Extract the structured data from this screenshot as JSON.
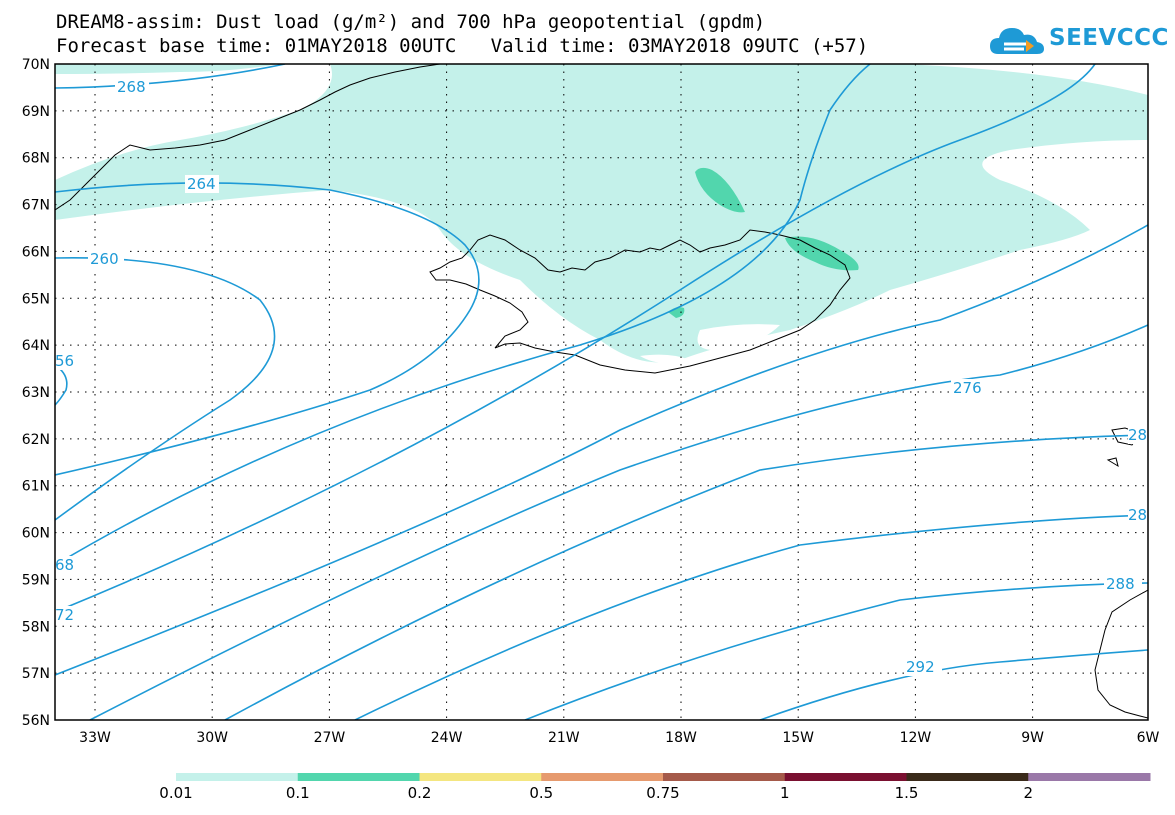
{
  "title": {
    "line1": "DREAM8-assim: Dust load (g/m²) and 700 hPa geopotential (gpdm)",
    "line2": "Forecast base time: 01MAY2018 00UTC   Valid time: 03MAY2018 09UTC (+57)"
  },
  "logo": {
    "text": "SEEVCCC",
    "icon": "cloud-logo-icon",
    "color": "#1e9ad6"
  },
  "axes": {
    "lat_labels": [
      "70N",
      "69N",
      "68N",
      "67N",
      "66N",
      "65N",
      "64N",
      "63N",
      "62N",
      "61N",
      "60N",
      "59N",
      "58N",
      "57N",
      "56N"
    ],
    "lon_labels": [
      "33W",
      "30W",
      "27W",
      "24W",
      "21W",
      "18W",
      "15W",
      "12W",
      "9W",
      "6W"
    ]
  },
  "contour_labels": {
    "c268_top": "268",
    "c264": "264",
    "c260": "260",
    "c256_left": "56",
    "c268_left": "68",
    "c272_left": "72",
    "c276": "276",
    "c280_right": "28",
    "c284_right": "28",
    "c288": "288",
    "c292": "292"
  },
  "colorbar": {
    "labels": [
      "0.01",
      "0.1",
      "0.2",
      "0.5",
      "0.75",
      "1",
      "1.5",
      "2"
    ],
    "colors": [
      "#c4f1ea",
      "#52d6ad",
      "#f4e680",
      "#e69a6e",
      "#a55a4a",
      "#7a1030",
      "#3a2a1a",
      "#9a78a8"
    ]
  },
  "colors": {
    "contour": "#1e9ad6",
    "dust_light": "#c4f1ea",
    "dust_mid": "#52d6ad"
  }
}
